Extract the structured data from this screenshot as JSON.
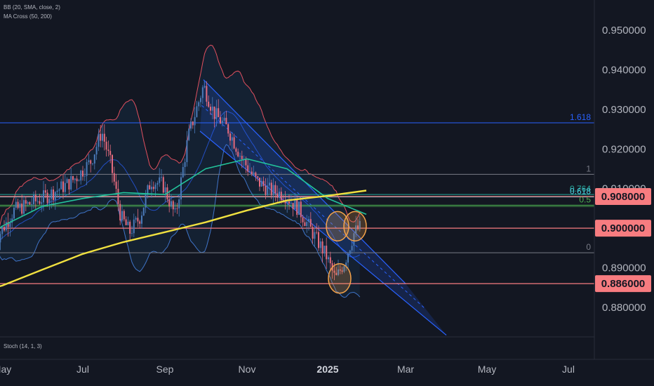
{
  "indicators": {
    "bb": "BB (20, SMA, close, 2)",
    "ma_cross": "MA Cross (50, 200)",
    "stoch": "Stoch (14, 1, 3)"
  },
  "colors": {
    "background": "#131722",
    "candle_up": "#4a7ab8",
    "candle_down": "#e56b7e",
    "bb_upper": "#e0505f",
    "bb_lower": "#3f74c8",
    "ma50": "#23c49b",
    "ma200": "#f0e040",
    "channel": "#2962ff",
    "fib_1618": "#2962ff",
    "fib_0764": "#26a69a",
    "fib_0618": "#4dd0e1",
    "fib_05": "#4caf50",
    "level_red": "#f77c80",
    "highlight_circle": "#f5a34a"
  },
  "chart_data": {
    "type": "candlestick",
    "title": "",
    "y_axis": {
      "ticks": [
        0.95,
        0.94,
        0.93,
        0.92,
        0.91,
        0.89,
        0.88
      ],
      "ylim": [
        0.8765,
        0.9535
      ],
      "position": "right"
    },
    "x_axis": {
      "ticks": [
        "May",
        "Jul",
        "Sep",
        "Nov",
        "2025",
        "Mar",
        "May",
        "Jul"
      ]
    },
    "fib_levels": [
      {
        "label": "1.618",
        "value": 0.9266
      },
      {
        "label": "1",
        "value": 0.9136
      },
      {
        "label": "0.764",
        "value": 0.9085
      },
      {
        "label": "0.618",
        "value": 0.9079
      },
      {
        "label": "0.5",
        "value": 0.9058
      },
      {
        "label": "0",
        "value": 0.8938
      }
    ],
    "extra_levels": [
      0.9055
    ],
    "price_labels": [
      {
        "label": "0.908000",
        "value": 0.908
      },
      {
        "label": "0.900000",
        "value": 0.9
      },
      {
        "label": "0.886000",
        "value": 0.886
      }
    ],
    "channel": {
      "upper": [
        [
          "Sep",
          0.9375
        ],
        [
          "Mar",
          0.886
        ]
      ],
      "lower": [
        [
          "Sep",
          0.9245
        ],
        [
          "Apr",
          0.873
        ]
      ]
    },
    "ma200": [
      [
        "Apr",
        0.883
      ],
      [
        "May",
        0.8855
      ],
      [
        "Jun",
        0.8895
      ],
      [
        "Jul",
        0.8935
      ],
      [
        "Aug",
        0.8965
      ],
      [
        "Sep",
        0.899
      ],
      [
        "Oct",
        0.9015
      ],
      [
        "Nov",
        0.9045
      ],
      [
        "Dec",
        0.907
      ],
      [
        "Jan",
        0.9082
      ],
      [
        "Feb",
        0.9095
      ]
    ],
    "ma50": [
      [
        "Apr",
        0.893
      ],
      [
        "May",
        0.9005
      ],
      [
        "Jun",
        0.9055
      ],
      [
        "Jul",
        0.9075
      ],
      [
        "Aug",
        0.909
      ],
      [
        "Sep",
        0.9085
      ],
      [
        "Oct",
        0.915
      ],
      [
        "Nov",
        0.9175
      ],
      [
        "Dec",
        0.915
      ],
      [
        "Jan",
        0.9075
      ],
      [
        "Feb",
        0.9035
      ]
    ],
    "highlight_circles": [
      {
        "date": "Dec",
        "value": 0.9005
      },
      {
        "date": "Jan",
        "value": 0.8873
      },
      {
        "date": "Jan",
        "value": 0.9005
      }
    ]
  }
}
